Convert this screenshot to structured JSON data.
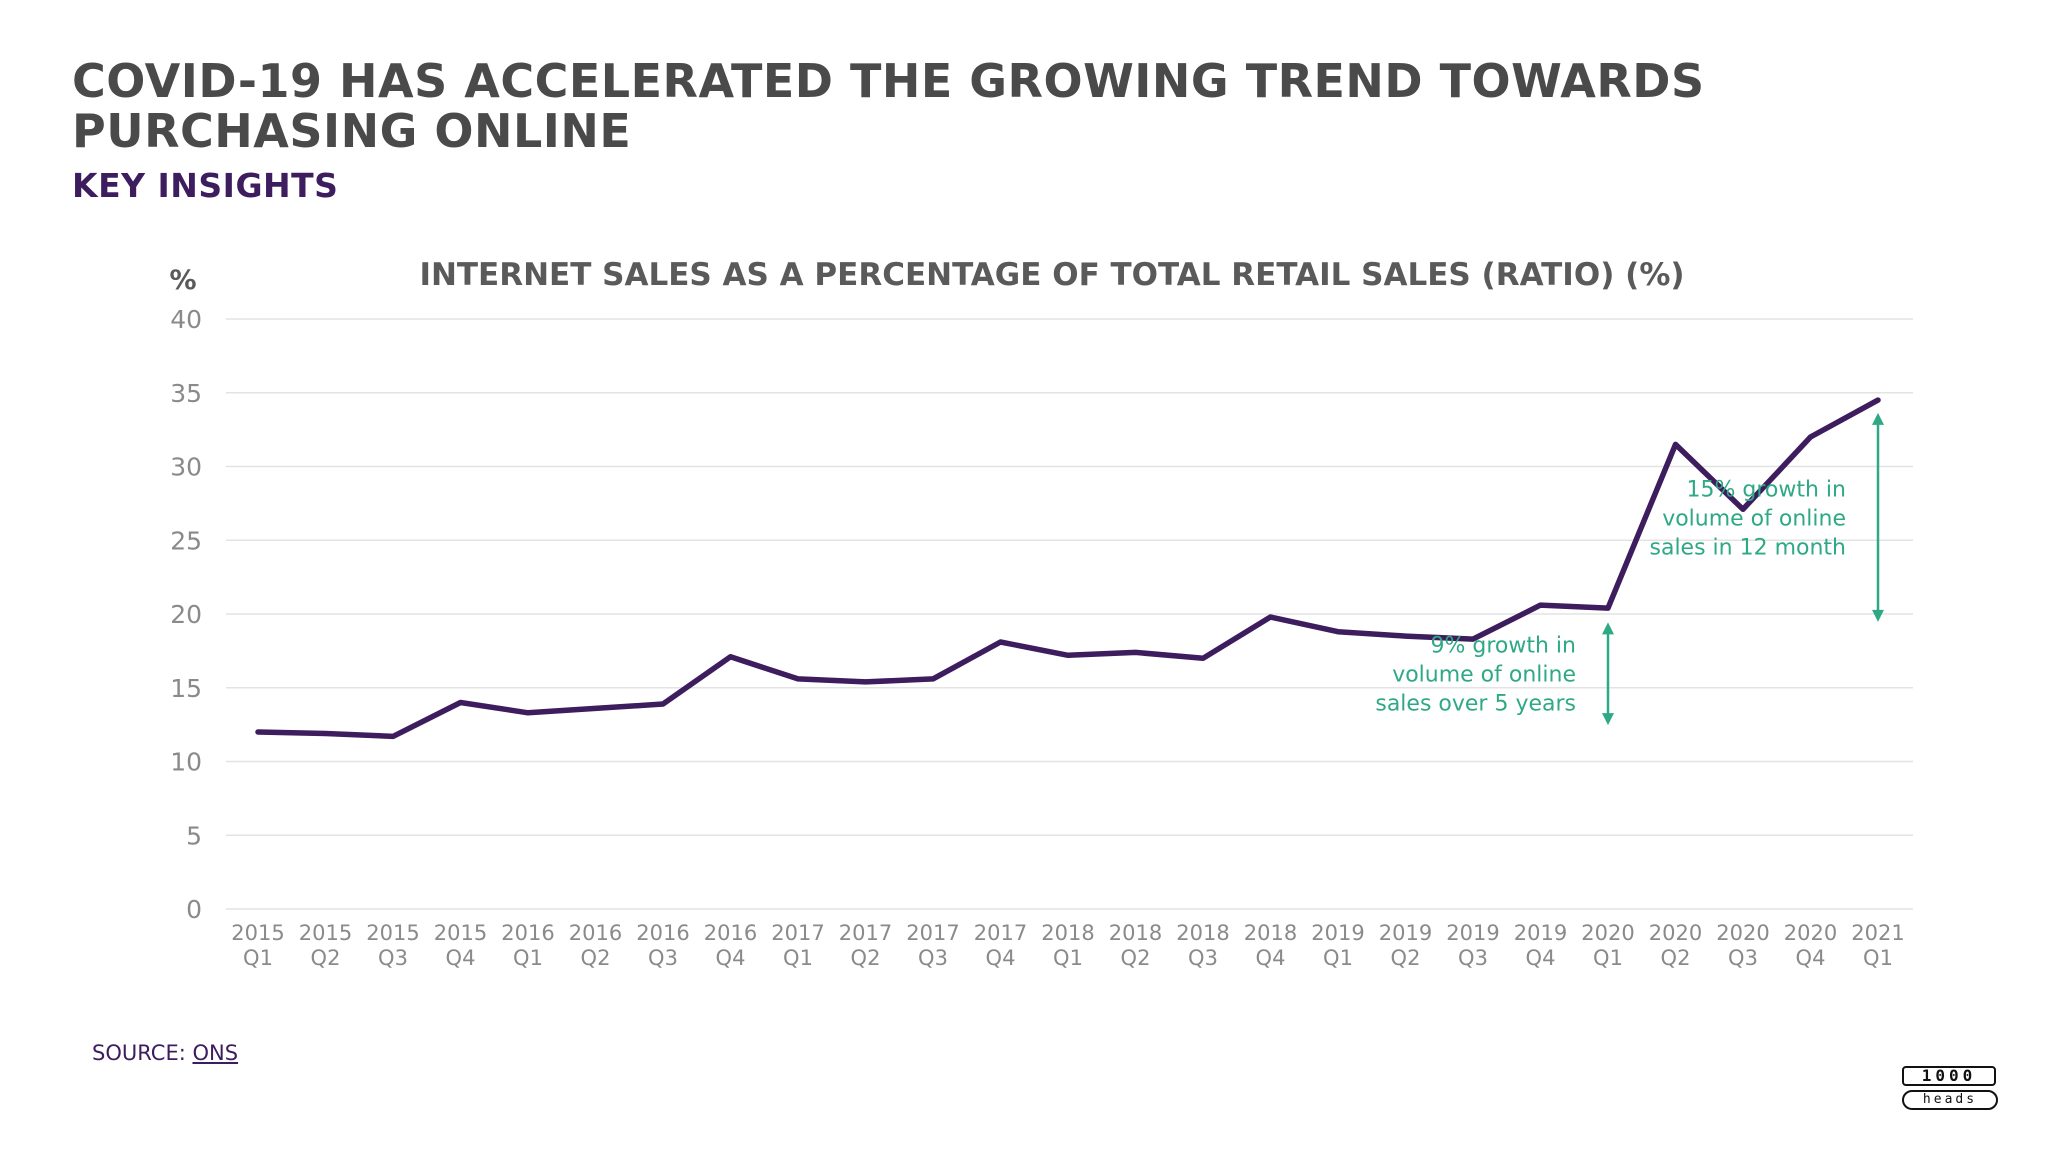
{
  "header": {
    "title": "COVID-19 HAS ACCELERATED THE GROWING TREND TOWARDS PURCHASING ONLINE",
    "subtitle": "KEY INSIGHTS"
  },
  "chart_data": {
    "type": "line",
    "title": "INTERNET SALES AS A PERCENTAGE OF TOTAL RETAIL SALES (RATIO) (%)",
    "ylabel": "%",
    "xlabel": "",
    "ylim": [
      0,
      40
    ],
    "yticks": [
      "0",
      "5",
      "10",
      "15",
      "20",
      "25",
      "30",
      "35",
      "40"
    ],
    "grid": true,
    "categories": [
      [
        "2015",
        "Q1"
      ],
      [
        "2015",
        "Q2"
      ],
      [
        "2015",
        "Q3"
      ],
      [
        "2015",
        "Q4"
      ],
      [
        "2016",
        "Q1"
      ],
      [
        "2016",
        "Q2"
      ],
      [
        "2016",
        "Q3"
      ],
      [
        "2016",
        "Q4"
      ],
      [
        "2017",
        "Q1"
      ],
      [
        "2017",
        "Q2"
      ],
      [
        "2017",
        "Q3"
      ],
      [
        "2017",
        "Q4"
      ],
      [
        "2018",
        "Q1"
      ],
      [
        "2018",
        "Q2"
      ],
      [
        "2018",
        "Q3"
      ],
      [
        "2018",
        "Q4"
      ],
      [
        "2019",
        "Q1"
      ],
      [
        "2019",
        "Q2"
      ],
      [
        "2019",
        "Q3"
      ],
      [
        "2019",
        "Q4"
      ],
      [
        "2020",
        "Q1"
      ],
      [
        "2020",
        "Q2"
      ],
      [
        "2020",
        "Q3"
      ],
      [
        "2020",
        "Q4"
      ],
      [
        "2021",
        "Q1"
      ]
    ],
    "series": [
      {
        "color": "#3d1d5e",
        "values": [
          12.0,
          11.9,
          11.7,
          14.0,
          13.3,
          13.6,
          13.9,
          17.1,
          15.6,
          15.4,
          15.6,
          18.1,
          17.2,
          17.4,
          17.0,
          19.8,
          18.8,
          18.5,
          18.3,
          20.6,
          20.4,
          31.5,
          27.1,
          32.0,
          34.5
        ]
      }
    ],
    "annotations": [
      {
        "lines": [
          "15% growth in",
          "volume of online",
          "sales in 12 month"
        ],
        "arrow_category": 24,
        "arrow_from": 19.6,
        "arrow_to": 33.5,
        "color": "#2fa985"
      },
      {
        "lines": [
          "9% growth in",
          "volume of online",
          "sales over 5 years"
        ],
        "arrow_category": 20,
        "arrow_from": 12.6,
        "arrow_to": 19.3,
        "color": "#2fa985"
      }
    ]
  },
  "footer": {
    "source_prefix": "SOURCE: ",
    "source_link": "ONS",
    "logo_top": "1000",
    "logo_bottom": "heads"
  }
}
